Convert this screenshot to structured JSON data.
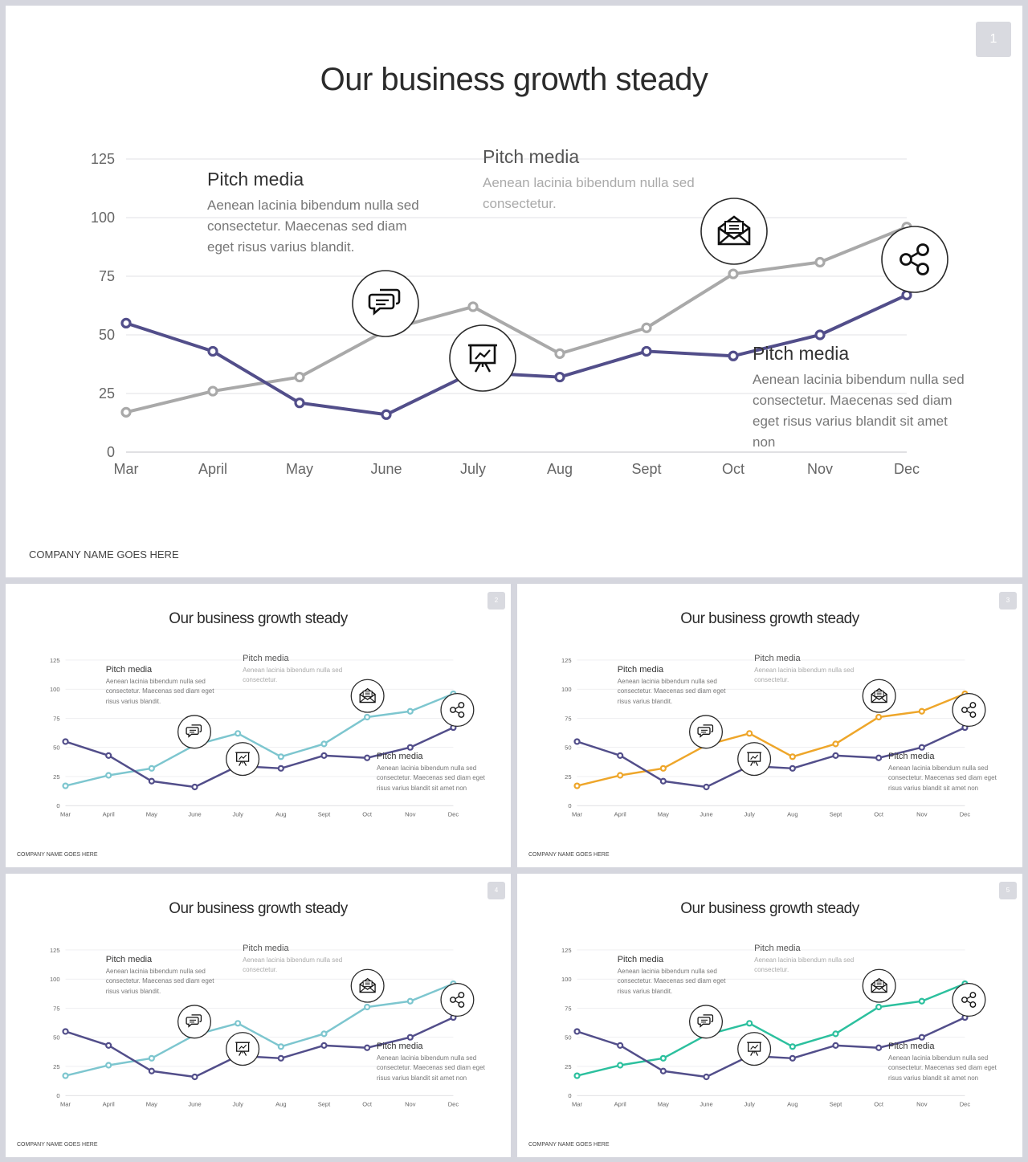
{
  "title": "Our business growth steady",
  "company": "COMPANY NAME GOES HERE",
  "slide_numbers": [
    "1",
    "2",
    "3",
    "4",
    "5"
  ],
  "callouts": [
    {
      "title": "Pitch media",
      "body": "Aenean lacinia bibendum nulla sed consectetur. Maecenas sed diam eget risus varius blandit."
    },
    {
      "title": "Pitch media",
      "body": "Aenean lacinia bibendum nulla sed consectetur."
    },
    {
      "title": "Pitch media",
      "body": "Aenean lacinia bibendum nulla sed consectetur. Maecenas sed diam eget risus varius blandit sit amet non"
    }
  ],
  "icons": [
    "chat-bubbles-icon",
    "presentation-board-icon",
    "envelope-icon",
    "share-icon"
  ],
  "colors": {
    "primary_series": "#524e8a",
    "slide1_secondary": "#a9a9a9",
    "slide2_secondary": "#7dc6cf",
    "slide3_secondary": "#eea62a",
    "slide4_secondary": "#7dc6cf",
    "slide5_secondary": "#2cc09e"
  },
  "chart_data": {
    "type": "line",
    "categories": [
      "Mar",
      "April",
      "May",
      "June",
      "July",
      "Aug",
      "Sept",
      "Oct",
      "Nov",
      "Dec"
    ],
    "yticks": [
      0,
      25,
      50,
      75,
      100,
      125
    ],
    "ylim": [
      0,
      125
    ],
    "grid": true,
    "series": [
      {
        "values": [
          17,
          26,
          32,
          52,
          62,
          42,
          53,
          76,
          81,
          96
        ]
      },
      {
        "values": [
          55,
          43,
          21,
          16,
          34,
          32,
          43,
          41,
          50,
          67
        ]
      }
    ]
  }
}
